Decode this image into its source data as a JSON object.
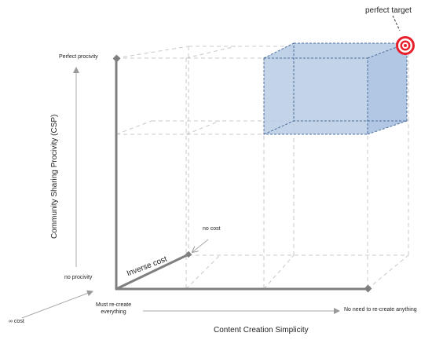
{
  "labels": {
    "perfect_target": "perfect target",
    "perfect_procivity": "Perfect procivity",
    "y_axis_title": "Community Sharing Procivity (CSP)",
    "no_procivity": "no procivity",
    "no_cost": "no  cost",
    "inverse_cost": "Inverse cost",
    "must_recreate_line1": "Must re-create",
    "must_recreate_line2": "everything",
    "no_need_recreate": "No need to re-create anything",
    "infinite_cost": "∞ cost",
    "x_axis_title": "Content Creation Simplicity"
  },
  "colors": {
    "axis": "#7f7f7f",
    "grid": "#c8c8c8",
    "box_fill": "#b9cde5",
    "box_edge": "#4f6f9f",
    "target_red": "#e8202a",
    "arrow": "#999999"
  }
}
